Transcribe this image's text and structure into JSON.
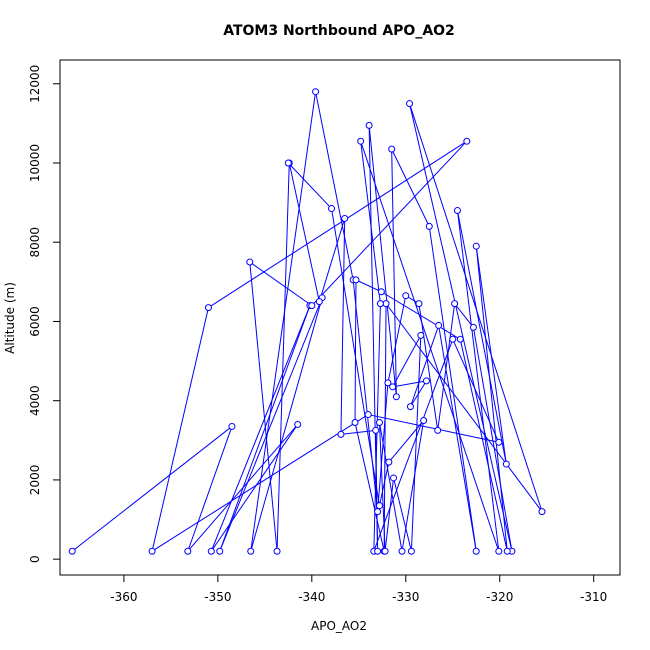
{
  "chart_data": {
    "type": "line",
    "title": "ATOM3 Northbound APO_AO2",
    "xlabel": "APO_AO2",
    "ylabel": "Altitude (m)",
    "xlim": [
      -366.8,
      -307.2
    ],
    "ylim": [
      -400,
      12600
    ],
    "x_ticks": [
      -360,
      -350,
      -340,
      -330,
      -320,
      -310
    ],
    "y_ticks": [
      0,
      2000,
      4000,
      6000,
      8000,
      10000,
      12000
    ],
    "series_color": "#0000ff",
    "marker": "open-circle",
    "series": [
      {
        "points": [
          [
            -365.5,
            200
          ],
          [
            -348.5,
            3350
          ],
          [
            -353.2,
            200
          ],
          [
            -341.5,
            3400
          ],
          [
            -350.7,
            200
          ],
          [
            -340.2,
            6400
          ],
          [
            -349.8,
            200
          ],
          [
            -338.9,
            6600
          ],
          [
            -346.5,
            200
          ],
          [
            -339.6,
            11800
          ],
          [
            -335.6,
            7050
          ],
          [
            -333.0,
            1200
          ],
          [
            -331.9,
            4450
          ],
          [
            -330.0,
            6650
          ],
          [
            -328.6,
            6450
          ],
          [
            -326.6,
            3250
          ],
          [
            -324.8,
            6450
          ],
          [
            -322.8,
            5850
          ],
          [
            -318.7,
            200
          ],
          [
            -329.6,
            11500
          ],
          [
            -315.5,
            1200
          ],
          [
            -332.1,
            6450
          ],
          [
            -332.3,
            200
          ],
          [
            -335.4,
            3450
          ],
          [
            -335.3,
            7050
          ],
          [
            -332.6,
            6750
          ],
          [
            -324.2,
            5550
          ],
          [
            -319.2,
            200
          ],
          [
            -322.5,
            7900
          ],
          [
            -319.3,
            2400
          ],
          [
            -324.5,
            8800
          ],
          [
            -320.1,
            200
          ],
          [
            -334.8,
            10550
          ],
          [
            -332.7,
            6450
          ],
          [
            -333.4,
            200
          ],
          [
            -325.0,
            5550
          ],
          [
            -320.1,
            2950
          ],
          [
            -334.0,
            3650
          ],
          [
            -357.0,
            200
          ],
          [
            -351.0,
            6350
          ],
          [
            -323.5,
            10550
          ],
          [
            -340.0,
            6400
          ],
          [
            -346.6,
            7500
          ],
          [
            -343.7,
            200
          ],
          [
            -342.4,
            10000
          ],
          [
            -339.2,
            6500
          ],
          [
            -336.5,
            8600
          ],
          [
            -336.9,
            3150
          ],
          [
            -333.2,
            3250
          ],
          [
            -333.0,
            200
          ],
          [
            -333.9,
            10950
          ],
          [
            -331.0,
            4100
          ],
          [
            -331.5,
            10350
          ],
          [
            -327.5,
            8400
          ],
          [
            -322.5,
            200
          ],
          [
            -326.5,
            5900
          ],
          [
            -329.5,
            3850
          ],
          [
            -327.8,
            4500
          ],
          [
            -331.4,
            4350
          ],
          [
            -328.4,
            5650
          ],
          [
            -329.4,
            200
          ],
          [
            -331.3,
            2050
          ],
          [
            -332.2,
            200
          ],
          [
            -332.8,
            3450
          ],
          [
            -330.4,
            200
          ],
          [
            -328.1,
            3500
          ],
          [
            -331.8,
            2450
          ],
          [
            -332.8,
            1350
          ],
          [
            -337.9,
            8850
          ],
          [
            -342.5,
            10000
          ]
        ]
      }
    ]
  }
}
